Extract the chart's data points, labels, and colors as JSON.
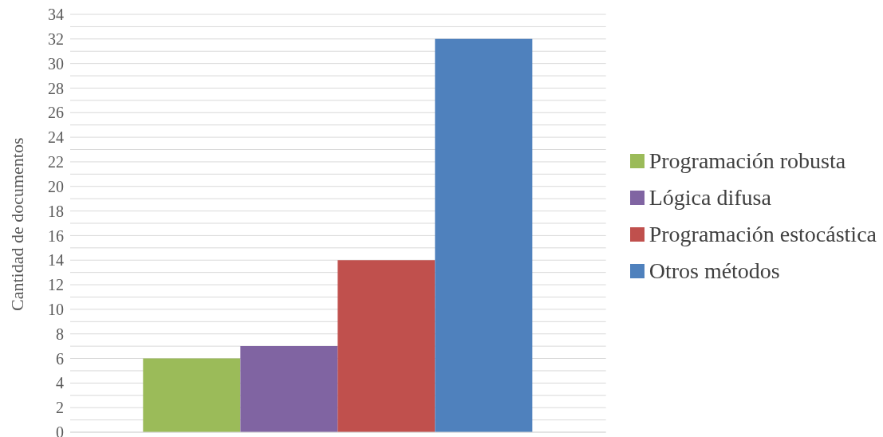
{
  "chart_data": {
    "type": "bar",
    "ylabel": "Cantidad de documentos",
    "categories": [
      null
    ],
    "series": [
      {
        "name": "Programación robusta",
        "color": "#9bbb59",
        "values": [
          6
        ]
      },
      {
        "name": "Lógica difusa",
        "color": "#8064a2",
        "values": [
          7
        ]
      },
      {
        "name": "Programación estocástica",
        "color": "#c0504d",
        "values": [
          14
        ]
      },
      {
        "name": "Otros métodos",
        "color": "#4f81bd",
        "values": [
          32
        ]
      }
    ],
    "ylim": [
      0,
      34
    ],
    "yticks": [
      0,
      {
        "value": 1,
        "label": null
      },
      2,
      {
        "value": 3,
        "label": null
      },
      4,
      {
        "value": 5,
        "label": null
      },
      6,
      {
        "value": 7,
        "label": null
      },
      8,
      {
        "value": 9,
        "label": null
      },
      10,
      {
        "value": 11,
        "label": null
      },
      12,
      {
        "value": 13,
        "label": null
      },
      14,
      {
        "value": 15,
        "label": null
      },
      16,
      {
        "value": 17,
        "label": null
      },
      18,
      {
        "value": 19,
        "label": null
      },
      20,
      {
        "value": 21,
        "label": null
      },
      22,
      {
        "value": 23,
        "label": null
      },
      24,
      {
        "value": 25,
        "label": null
      },
      26,
      {
        "value": 27,
        "label": null
      },
      28,
      {
        "value": 29,
        "label": null
      },
      30,
      {
        "value": 31,
        "label": null
      },
      32,
      {
        "value": 33,
        "label": null
      },
      34
    ],
    "grid": "y",
    "legend": "right"
  }
}
